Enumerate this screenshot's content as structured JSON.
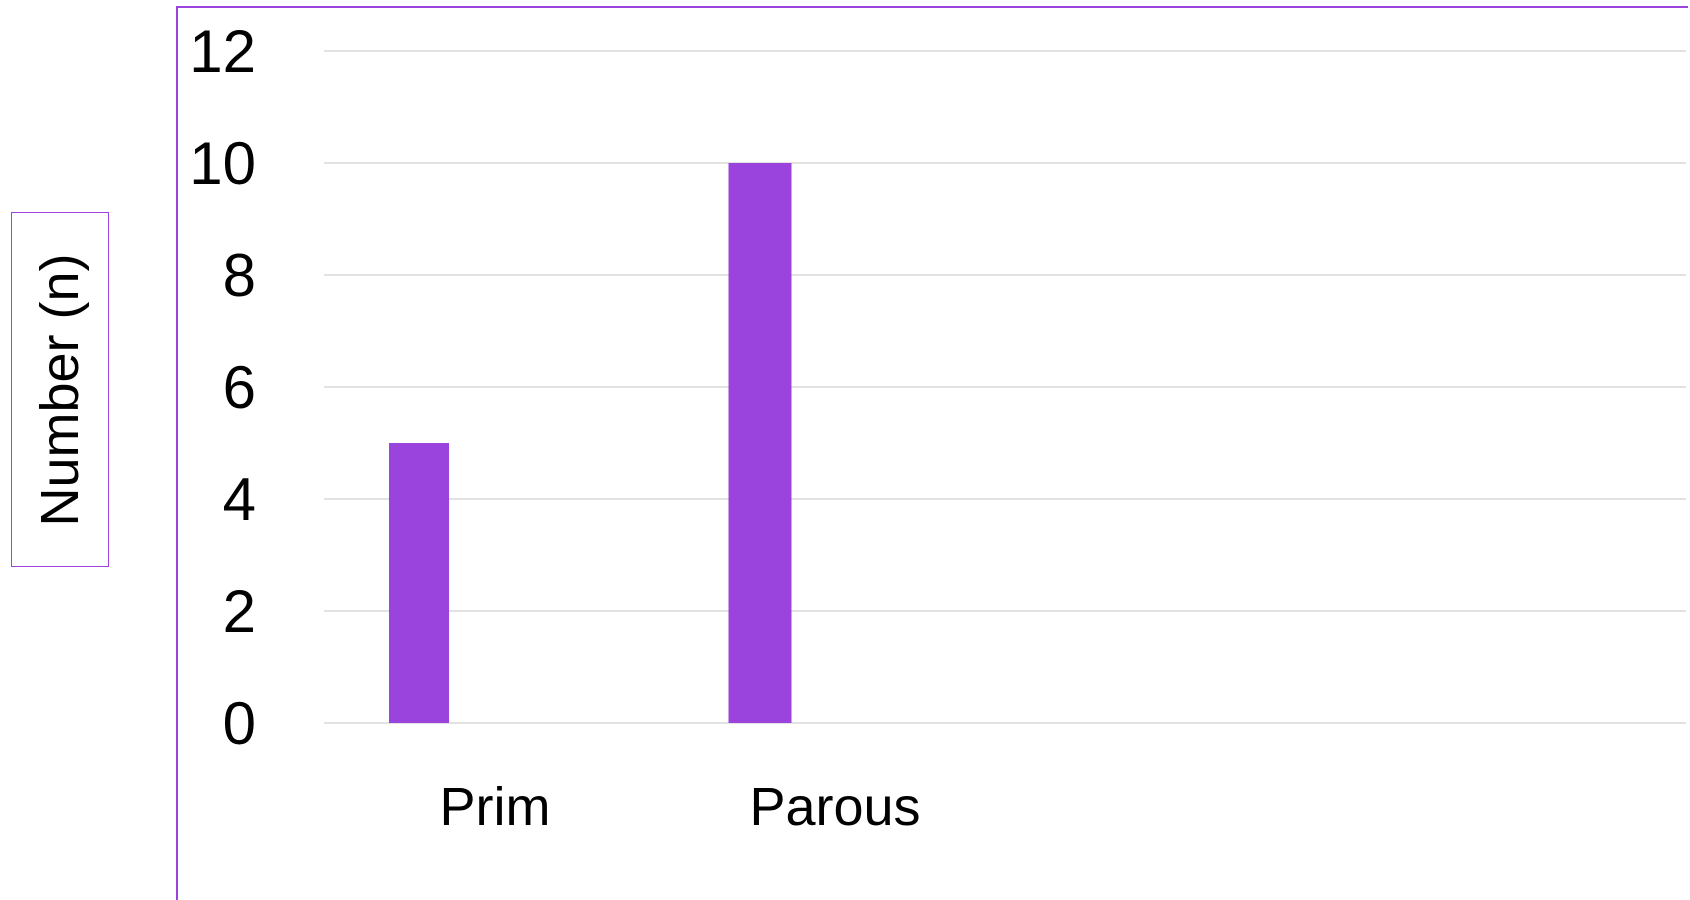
{
  "chart_data": {
    "type": "bar",
    "categories": [
      "Prim",
      "Parous"
    ],
    "values": [
      5,
      10
    ],
    "xlabel": "",
    "ylabel": "Number (n)",
    "ylim": [
      0,
      12
    ],
    "yticks": [
      0,
      2,
      4,
      6,
      8,
      10,
      12
    ],
    "grid": true,
    "bar_color": "#9b44dd",
    "grid_color": "#d9d9d9",
    "frame_color": "#9b44dd"
  }
}
